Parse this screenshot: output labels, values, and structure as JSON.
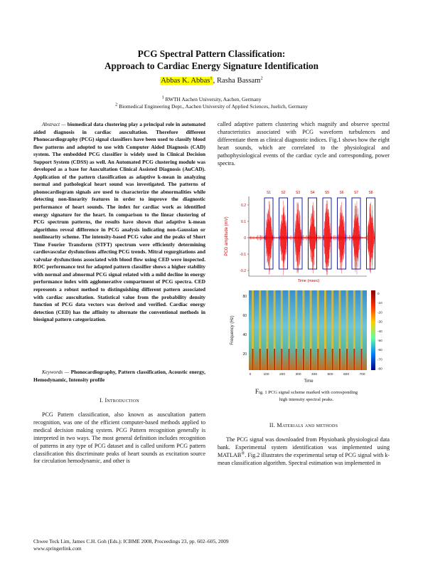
{
  "title_line1": "PCG Spectral Pattern Classification:",
  "title_line2": "Approach to Cardiac Energy Signature Identification",
  "author1": "Abbas K. Abbas",
  "author1_sup": "1",
  "author_sep": ", ",
  "author2": "Rasha Bassam",
  "author2_sup": "2",
  "affil1_sup": "1",
  "affil1": " RWTH Aachen University, Aachen, Germany",
  "affil2_sup": "2",
  "affil2": " Biomedical Engineering Dept., Aachen University of Applied Sciences, Juelich, Germany",
  "abstract_lead": "Abstract —",
  "abstract_text": " biomedical data clustering play a principal role in automated aided diagnosis in cardiac auscultation. Therefore different Phonocardiography (PCG) signal classifiers have been used to classify blood flow patterns and adopted to use with Computer Aided Diagnosis (CAD) system. The embedded PCG classifier is widely used in Clinical Decision Support System (CDSS) as well. An Automated PCG clustering module was developed as a base for Auscultation Clinical Assisted Diagnosis (AuCAD). Application of the pattern classification as adaptive k-mean in analyzing normal and pathological heart sound was investigated. The patterns of phonocardiogram signals are used to characterize the abnormalities while detecting non-linearity features in order to improve the diagnostic performance of heart sounds. The index for cardiac work as identified energy signature for the heart. In comparison to the linear clustering of PCG spectrum patterns, the results have shown that adaptive k-mean algorithms reveal difference in PCG analysis indicating non-Gaussian or nonlinearity scheme. The intensity-based PCG value and the peaks of Short Time Fourier Transform (STFT) spectrum were efficiently determining cardiovascular dysfunctions affecting PCG trends. Mitral regurgitations and valvular dysfunctions associated with blood flow using CED were inspected. ROC performance test for adapted pattern classifier shows a higher stability with normal and abnormal PCG signal related with a mild decline in energy performance index with agglomerative compartment of PCG spectra. CED represents a robust method to distinguishing different pattern associated with cardiac auscultation. Statistical value from the probability density function of PCG data vectors was derived and verified. Cardiac energy detection (CED) has the affinity to alternate the conventional methods in biosignal pattern categorization.",
  "keywords_lead": "Keywords —",
  "keywords_text": " Phonocardiography, Pattern classification, Acoustic energy, Hemodynamic, Intensity profile",
  "sec1_num": "I. ",
  "sec1_title": "Introduction",
  "intro_text": "PCG Pattern classification, also known as auscultation pattern recognition, was one of the efficient computer-based methods applied to medical decision making system. PCG Pattern recognition generally is interpreted in two ways. The most general definition includes recognition of patterns in any type of PCG dataset and is called uniform PCG pattern classification this discriminate peaks of heart sounds as excitation source for circulation hemodynamic, and other is",
  "right_text": "called adaptive pattern clustering which magnify and observe spectral characteristics associated with PCG waveform turbulences and differentiate them as clinical diagnostic indices. Fig.1 shows how the eight heart sounds, which are correlated to the physiological and pathophysiological events of the cardiac cycle and corresponding, power spectra.",
  "fig_seg_labels": [
    "S1",
    "S2",
    "S3",
    "S4",
    "S5",
    "S6",
    "S7",
    "S8"
  ],
  "fig_top_ylabel": "PCG amplitude (mV)",
  "fig_top_yticks": [
    "0.2",
    "0.1",
    "0",
    "-0.1",
    "-0.2"
  ],
  "fig_top_xlabel": "Time (msec)",
  "fig_bot_ylabel": "Frequency (Hz)",
  "fig_bot_yticks": [
    "80",
    "60",
    "40",
    "20"
  ],
  "fig_bot_xticks": [
    "0",
    "100",
    "200",
    "300",
    "400",
    "500",
    "600",
    "700"
  ],
  "fig_bot_xlabel": "Time",
  "fig_cbar_ticks": [
    "0",
    "-10",
    "-20",
    "-30",
    "-40",
    "-50",
    "-60",
    "-70",
    "-80"
  ],
  "caption_first": "F",
  "caption_rest": "ig. 1 PCG signal scheme marked with corresponding",
  "caption_line2": "high intensity spectral peaks.",
  "sec2_num": "II. ",
  "sec2_title": "Materials and methods",
  "methods_text_a": "The PCG signal was downloaded from Physiobank physiological data bank. Experimental system identification was implemented using MATLAB",
  "methods_sup": "®",
  "methods_text_b": ". Fig.2 illustrates the experimental setup of PCG signal with k-mean classification algorithm. Spectral estimation was implemented in",
  "footer_line1": "Chwee Teck Lim, James C.H. Goh (Eds.): ICBME 2008, Proceedings 23, pp. 602–605, 2009",
  "footer_line2": "www.springerlink.com"
}
